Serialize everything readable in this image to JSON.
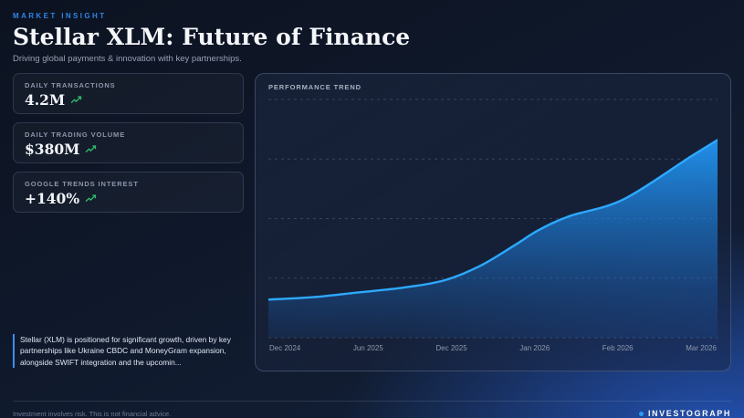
{
  "header": {
    "eyebrow": "MARKET INSIGHT",
    "title": "Stellar XLM: Future of Finance",
    "subtitle": "Driving global payments & innovation with key partnerships."
  },
  "stats": [
    {
      "label": "DAILY TRANSACTIONS",
      "value": "4.2M",
      "trend": "up"
    },
    {
      "label": "DAILY TRADING VOLUME",
      "value": "$380M",
      "trend": "up"
    },
    {
      "label": "GOOGLE TRENDS INTEREST",
      "value": "+140%",
      "trend": "up"
    }
  ],
  "insight": {
    "text": "Stellar (XLM) is positioned for significant growth, driven by key partnerships like Ukraine CBDC and MoneyGram expansion, alongside SWIFT integration and the upcomin..."
  },
  "chart_data": {
    "type": "area",
    "title": "PERFORMANCE TREND",
    "categories": [
      "Dec 2024",
      "Jun 2025",
      "Dec 2025",
      "Jan 2026",
      "Feb 2026",
      "Mar 2026"
    ],
    "values": [
      16,
      19,
      24,
      45,
      57,
      76
    ],
    "curve": [
      [
        0,
        16
      ],
      [
        0.1,
        17
      ],
      [
        0.2,
        19
      ],
      [
        0.3,
        21
      ],
      [
        0.39,
        24
      ],
      [
        0.47,
        30
      ],
      [
        0.55,
        39
      ],
      [
        0.6,
        45
      ],
      [
        0.67,
        51
      ],
      [
        0.79,
        58
      ],
      [
        0.94,
        76
      ],
      [
        1,
        83
      ]
    ],
    "ylim": [
      0,
      100
    ],
    "xlabel": "",
    "ylabel": "",
    "legend_position": "none",
    "grid": {
      "horizontal_lines": 5,
      "style": "dashed"
    },
    "colors": {
      "line": "#2da9ff",
      "fill_top": "#2196f3",
      "fill_mid": "#1d78d4",
      "fill_bottom": "#1d5cb0"
    }
  },
  "footer": {
    "disclaimer": "Investment involves risk. This is not financial advice.",
    "brand": "INVESTOGRAPH"
  },
  "colors": {
    "accent_blue": "#2f86e6",
    "positive_green": "#2ebd6b",
    "glow_blue": "#2962db"
  }
}
